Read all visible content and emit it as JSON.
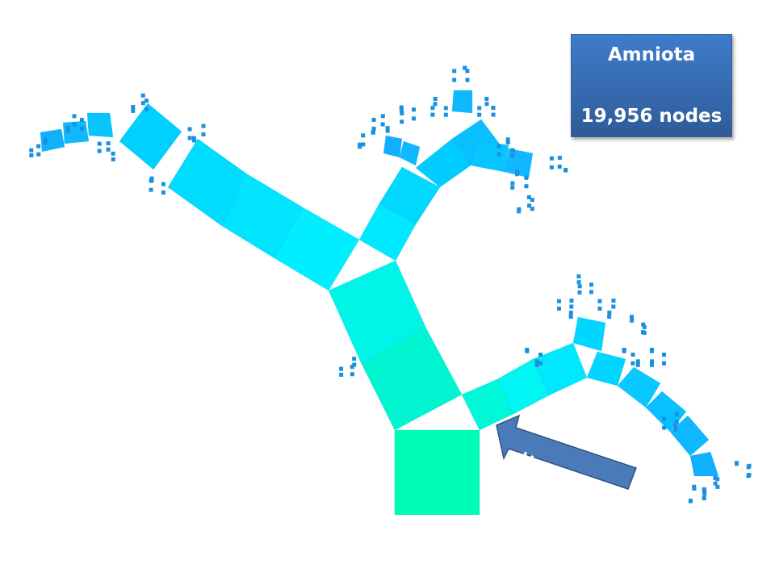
{
  "info_box": {
    "title": "Amniota",
    "node_count": "19,956 nodes"
  },
  "annotation": {
    "label": "Mammalia",
    "arrow_color": "#4a7ab8"
  },
  "colors": {
    "root": "#00fdb5",
    "trunk": "#00f2e0",
    "mid": "#00e8ff",
    "branch": "#00c8ff",
    "leaf": "#1a90e0"
  }
}
